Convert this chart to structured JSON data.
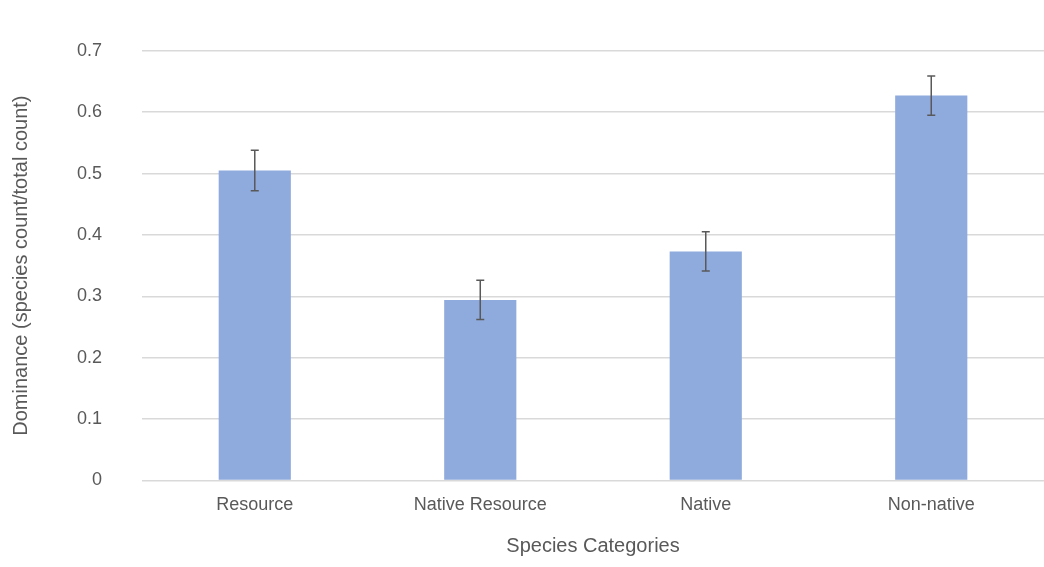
{
  "chart_data": {
    "type": "bar",
    "xlabel": "Species Categories",
    "ylabel": "Dominance (species count/total count)",
    "categories": [
      "Resource",
      "Native Resource",
      "Native",
      "Non-native"
    ],
    "values": [
      0.505,
      0.294,
      0.373,
      0.627
    ],
    "errors": [
      0.033,
      0.032,
      0.032,
      0.032
    ],
    "color": "#8faadc",
    "ylim": [
      0,
      0.7
    ],
    "yticks": [
      0,
      0.1,
      0.2,
      0.3,
      0.4,
      0.5,
      0.6,
      0.7
    ],
    "grid": "y"
  }
}
